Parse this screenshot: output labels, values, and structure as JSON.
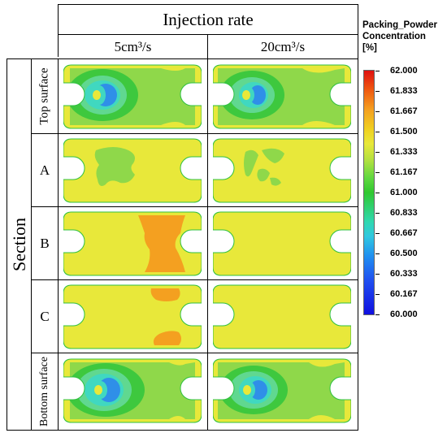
{
  "header": {
    "group_label": "Injection rate",
    "columns": [
      {
        "label": "5cm³/s"
      },
      {
        "label": "20cm³/s"
      }
    ]
  },
  "section_label": "Section",
  "rows": [
    {
      "label": "Top surface"
    },
    {
      "label": "A"
    },
    {
      "label": "B"
    },
    {
      "label": "C"
    },
    {
      "label": "Bottom surface"
    }
  ],
  "legend": {
    "title_line1": "Packing_Powder",
    "title_line2": "Concentration",
    "title_line3": "[%]",
    "ticks": [
      "62.000",
      "61.833",
      "61.667",
      "61.500",
      "61.333",
      "61.167",
      "61.000",
      "60.833",
      "60.667",
      "60.500",
      "60.333",
      "60.167",
      "60.000"
    ]
  },
  "colors": {
    "yellow": "#e8e83a",
    "green": "#8fd84a",
    "bright_green": "#3ec83e",
    "cyan": "#40d8c0",
    "blue": "#2f8fe8",
    "orange": "#f4a020",
    "edge_green": "#2fc040"
  }
}
